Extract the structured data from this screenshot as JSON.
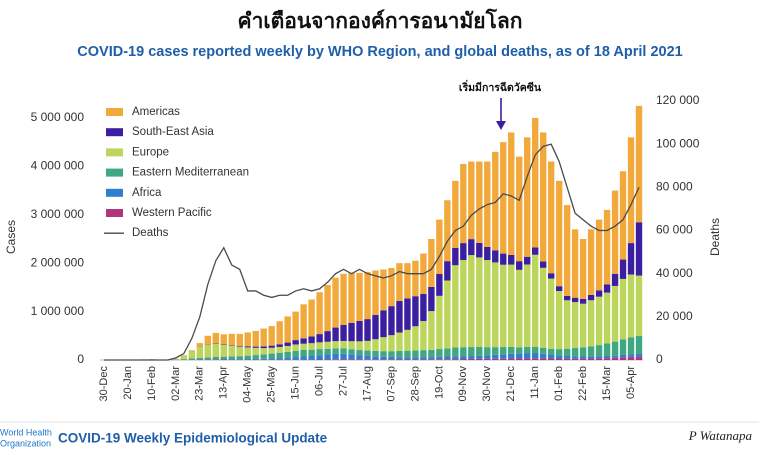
{
  "header": "คำเตือนจากองค์การอนามัยโลก",
  "chart_data": {
    "type": "bar",
    "title": "COVID-19 cases reported weekly by WHO Region, and global deaths, as of 18 April 2021",
    "annotation": "เริ่มมีการฉีดวัคซีน",
    "y_label": "Cases",
    "y2_label": "Deaths",
    "stacked": true,
    "grid": false,
    "legend": "top-left",
    "categories": [
      "30-Dec",
      null,
      null,
      "20-Jan",
      null,
      null,
      "10-Feb",
      null,
      null,
      "02-Mar",
      null,
      null,
      "23-Mar",
      null,
      null,
      "13-Apr",
      null,
      null,
      "04-May",
      null,
      null,
      "25-May",
      null,
      null,
      "15-Jun",
      null,
      null,
      "06-Jul",
      null,
      null,
      "27-Jul",
      null,
      null,
      "17-Aug",
      null,
      null,
      "07-Sep",
      null,
      null,
      "28-Sep",
      null,
      null,
      "19-Oct",
      null,
      null,
      "09-Nov",
      null,
      null,
      "30-Nov",
      null,
      null,
      "21-Dec",
      null,
      null,
      "11-Jan",
      null,
      null,
      "01-Feb",
      null,
      null,
      "22-Feb",
      null,
      null,
      "15-Mar",
      null,
      null,
      "05-Apr",
      null
    ],
    "ylim": [
      0,
      5350000
    ],
    "yticks": [
      0,
      {
        "value": 1000000,
        "label": "1 000 000"
      },
      {
        "value": 2000000,
        "label": "2 000 000"
      },
      {
        "value": 3000000,
        "label": "3 000 000"
      },
      {
        "value": 4000000,
        "label": "4 000 000"
      },
      {
        "value": 5000000,
        "label": "5 000 000"
      }
    ],
    "y2lim": [
      0,
      120000
    ],
    "y2ticks": [
      0,
      {
        "value": 20000,
        "label": "20 000"
      },
      {
        "value": 40000,
        "label": "40 000"
      },
      {
        "value": 60000,
        "label": "60 000"
      },
      {
        "value": 80000,
        "label": "80 000"
      },
      {
        "value": 100000,
        "label": "100 000"
      },
      {
        "value": 120000,
        "label": "120 000"
      }
    ],
    "series": [
      {
        "name": "Americas",
        "color": "#f2a93b",
        "values": [
          0,
          0,
          0,
          0,
          0,
          0,
          0,
          0,
          0,
          2000,
          10000,
          16000,
          71000,
          180000,
          220000,
          211000,
          234000,
          246000,
          290000,
          323000,
          369000,
          403000,
          475000,
          540000,
          589000,
          703000,
          762000,
          865000,
          953000,
          1030000,
          1057000,
          1032000,
          994000,
          975000,
          921000,
          847000,
          787000,
          782000,
          727000,
          732000,
          836000,
          990000,
          1124000,
          1258000,
          1382000,
          1635000,
          1603000,
          1681000,
          1765000,
          2034000,
          2302000,
          2530000,
          2158000,
          2467000,
          2676000,
          2666000,
          2308000,
          2175000,
          1877000,
          1413000,
          1237000,
          1355000,
          1462000,
          1537000,
          1720000,
          1825000,
          2185000,
          2405000
        ]
      },
      {
        "name": "South-East Asia",
        "color": "#3b1fa0",
        "values": [
          0,
          0,
          0,
          0,
          0,
          0,
          0,
          0,
          0,
          0,
          1000,
          2000,
          3000,
          5000,
          8000,
          10000,
          12000,
          15000,
          20000,
          25000,
          35000,
          45000,
          55000,
          70000,
          90000,
          110000,
          140000,
          170000,
          220000,
          280000,
          330000,
          380000,
          420000,
          450000,
          500000,
          550000,
          600000,
          650000,
          650000,
          620000,
          560000,
          500000,
          450000,
          400000,
          360000,
          350000,
          330000,
          300000,
          270000,
          250000,
          230000,
          200000,
          180000,
          160000,
          150000,
          130000,
          110000,
          100000,
          90000,
          90000,
          100000,
          110000,
          130000,
          170000,
          250000,
          400000,
          650000,
          1100000
        ]
      },
      {
        "name": "Europe",
        "color": "#bcd65c",
        "values": [
          0,
          0,
          0,
          0,
          0,
          0,
          0,
          0,
          2000,
          20000,
          70000,
          150000,
          230000,
          260000,
          270000,
          240000,
          220000,
          200000,
          170000,
          150000,
          130000,
          120000,
          120000,
          120000,
          130000,
          130000,
          135000,
          140000,
          145000,
          150000,
          155000,
          165000,
          180000,
          200000,
          240000,
          290000,
          330000,
          380000,
          430000,
          500000,
          600000,
          800000,
          1100000,
          1400000,
          1700000,
          1800000,
          1900000,
          1850000,
          1800000,
          1750000,
          1700000,
          1700000,
          1600000,
          1700000,
          1900000,
          1650000,
          1450000,
          1200000,
          1000000,
          950000,
          900000,
          950000,
          1000000,
          1050000,
          1150000,
          1250000,
          1300000,
          1250000
        ]
      },
      {
        "name": "Eastern Mediterranean",
        "color": "#3ea883",
        "values": [
          0,
          0,
          0,
          0,
          0,
          0,
          0,
          0,
          0,
          5000,
          15000,
          25000,
          35000,
          40000,
          45000,
          50000,
          55000,
          60000,
          70000,
          80000,
          90000,
          100000,
          110000,
          120000,
          130000,
          135000,
          130000,
          125000,
          120000,
          115000,
          110000,
          105000,
          105000,
          105000,
          110000,
          115000,
          120000,
          130000,
          135000,
          140000,
          145000,
          150000,
          160000,
          170000,
          180000,
          185000,
          185000,
          180000,
          170000,
          160000,
          150000,
          140000,
          130000,
          130000,
          130000,
          125000,
          120000,
          130000,
          150000,
          170000,
          190000,
          210000,
          230000,
          260000,
          290000,
          320000,
          350000,
          370000
        ]
      },
      {
        "name": "Africa",
        "color": "#2f7fd0",
        "values": [
          0,
          0,
          0,
          0,
          0,
          0,
          0,
          0,
          0,
          0,
          1000,
          2000,
          3000,
          5000,
          7000,
          9000,
          11000,
          13000,
          15000,
          18000,
          22000,
          28000,
          35000,
          45000,
          55000,
          65000,
          75000,
          90000,
          100000,
          110000,
          110000,
          100000,
          85000,
          75000,
          65000,
          55000,
          50000,
          45000,
          45000,
          45000,
          45000,
          45000,
          50000,
          55000,
          60000,
          60000,
          60000,
          65000,
          70000,
          80000,
          90000,
          100000,
          100000,
          110000,
          110000,
          95000,
          80000,
          65000,
          55000,
          50000,
          45000,
          45000,
          45000,
          45000,
          45000,
          50000,
          50000,
          55000
        ]
      },
      {
        "name": "Western Pacific",
        "color": "#b0357e",
        "values": [
          0,
          0,
          0,
          3000,
          8000,
          12000,
          14000,
          10000,
          5000,
          3000,
          3000,
          5000,
          8000,
          10000,
          10000,
          10000,
          8000,
          6000,
          5000,
          4000,
          4000,
          4000,
          5000,
          5000,
          6000,
          7000,
          8000,
          10000,
          12000,
          15000,
          18000,
          18000,
          16000,
          15000,
          14000,
          13000,
          13000,
          13000,
          13000,
          13000,
          14000,
          15000,
          16000,
          17000,
          18000,
          20000,
          22000,
          24000,
          25000,
          26000,
          28000,
          30000,
          32000,
          33000,
          34000,
          34000,
          32000,
          30000,
          28000,
          27000,
          28000,
          30000,
          33000,
          38000,
          45000,
          55000,
          65000,
          70000
        ]
      },
      {
        "name": "Deaths",
        "type": "line",
        "axis": "y2",
        "color": "#4a4a4a",
        "values": [
          0,
          0,
          0,
          0,
          0,
          0,
          0,
          0,
          0,
          1000,
          3000,
          10000,
          20000,
          35000,
          46000,
          52000,
          44000,
          42000,
          32000,
          32000,
          30000,
          29000,
          30000,
          30000,
          32000,
          33000,
          32000,
          33000,
          36000,
          40000,
          42000,
          40000,
          42000,
          40000,
          39000,
          38000,
          39000,
          41000,
          40000,
          40000,
          40000,
          42000,
          48000,
          55000,
          60000,
          62000,
          67000,
          70000,
          72000,
          73000,
          77000,
          76000,
          74000,
          85000,
          95000,
          99000,
          100000,
          92000,
          80000,
          68000,
          65000,
          62000,
          60000,
          60000,
          62000,
          65000,
          72000,
          80000
        ]
      }
    ]
  },
  "footer": {
    "logo": [
      "World Health",
      "Organization"
    ],
    "title": "COVID-19 Weekly Epidemiological Update",
    "author": "P Watanapa"
  }
}
